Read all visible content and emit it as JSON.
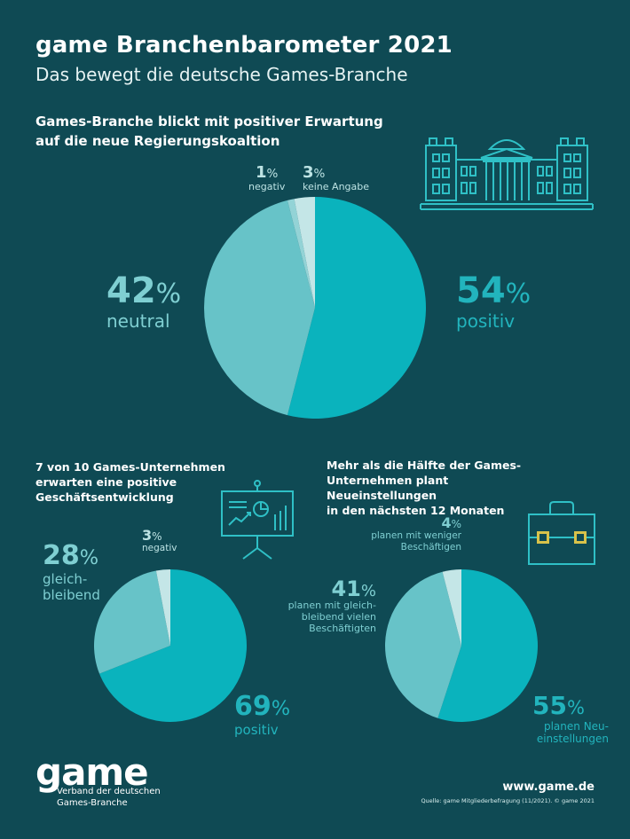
{
  "header": {
    "title": "game Branchenbarometer 2021",
    "subtitle": "Das bewegt die deutsche Games-Branche"
  },
  "sections": {
    "coalition": {
      "heading_line1": "Games-Branche blickt mit positiver Erwartung",
      "heading_line2": "auf die neue Regierungskoaltion"
    },
    "business": {
      "heading_line1": "7 von 10 Games-Unternehmen",
      "heading_line2": "erwarten eine positive",
      "heading_line3": "Geschäftsentwicklung"
    },
    "hiring": {
      "heading_line1": "Mehr als die Hälfte der Games-",
      "heading_line2": "Unternehmen plant Neueinstellungen",
      "heading_line3": "in den nächsten 12 Monaten"
    }
  },
  "chart_data": [
    {
      "type": "pie",
      "title": "Games-Branche blickt mit positiver Erwartung auf die neue Regierungskoaltion",
      "slices": [
        {
          "label": "positiv",
          "value": 54,
          "color": "#0ab3bd"
        },
        {
          "label": "neutral",
          "value": 42,
          "color": "#67c3c8"
        },
        {
          "label": "negativ",
          "value": 1,
          "color": "#93d3d6"
        },
        {
          "label": "keine Angabe",
          "value": 3,
          "color": "#c4e6e7"
        }
      ],
      "labels": {
        "positiv": {
          "num": "54",
          "sym": "%",
          "text": "positiv"
        },
        "neutral": {
          "num": "42",
          "sym": "%",
          "text": "neutral"
        },
        "negativ": {
          "num": "1",
          "sym": "%",
          "text": "negativ"
        },
        "keine": {
          "num": "3",
          "sym": "%",
          "text": "keine Angabe"
        }
      }
    },
    {
      "type": "pie",
      "title": "7 von 10 Games-Unternehmen erwarten eine positive Geschäftsentwicklung",
      "slices": [
        {
          "label": "positiv",
          "value": 69,
          "color": "#0ab3bd"
        },
        {
          "label": "gleichbleibend",
          "value": 28,
          "color": "#67c3c8"
        },
        {
          "label": "negativ",
          "value": 3,
          "color": "#c4e6e7"
        }
      ],
      "labels": {
        "positiv": {
          "num": "69",
          "sym": "%",
          "text": "positiv"
        },
        "gleich": {
          "num": "28",
          "sym": "%",
          "text1": "gleich-",
          "text2": "bleibend"
        },
        "negativ": {
          "num": "3",
          "sym": "%",
          "text": "negativ"
        }
      }
    },
    {
      "type": "pie",
      "title": "Mehr als die Hälfte der Games-Unternehmen plant Neueinstellungen in den nächsten 12 Monaten",
      "slices": [
        {
          "label": "planen Neueinstellungen",
          "value": 55,
          "color": "#0ab3bd"
        },
        {
          "label": "planen mit gleichbleibend vielen Beschäftigten",
          "value": 41,
          "color": "#67c3c8"
        },
        {
          "label": "planen mit weniger Beschäftigen",
          "value": 4,
          "color": "#c4e6e7"
        }
      ],
      "labels": {
        "neu": {
          "num": "55",
          "sym": "%",
          "text1": "planen Neu-",
          "text2": "einstellungen"
        },
        "gleich": {
          "num": "41",
          "sym": "%",
          "text1": "planen mit gleich-",
          "text2": "bleibend vielen",
          "text3": "Beschäftigten"
        },
        "weniger": {
          "num": "4",
          "sym": "%",
          "text1": "planen mit weniger",
          "text2": "Beschäftigen"
        }
      }
    }
  ],
  "icons": [
    "reichstag-icon",
    "presentation-board-icon",
    "briefcase-icon"
  ],
  "footer": {
    "logo": "game",
    "org_line1": "Verband der deutschen",
    "org_line2": "Games-Branche",
    "url": "www.game.de",
    "source": "Quelle: game Mitgliederbefragung (11/2021). © game 2021"
  }
}
